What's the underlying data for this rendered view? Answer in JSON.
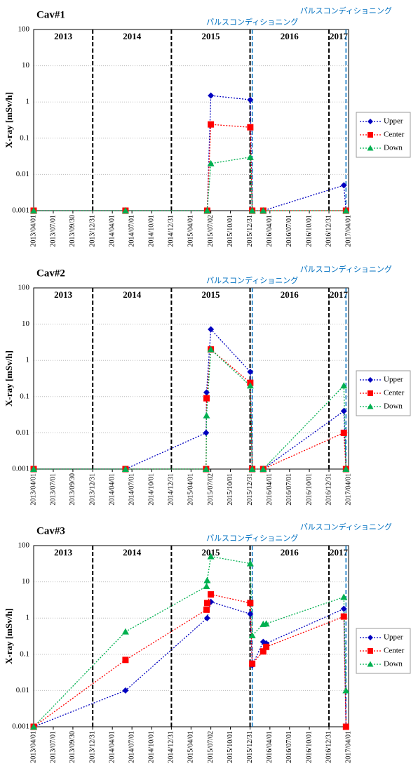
{
  "chart_data": [
    {
      "type": "line",
      "title": "Cav#1",
      "y_label": "X-ray [mSv/h]",
      "log_y": true,
      "grid": true,
      "ylim": [
        0.001,
        100
      ],
      "yticks": [
        0.001,
        0.01,
        0.1,
        1,
        10,
        100
      ],
      "xlim": [
        "2013/04/01",
        "2017/04/01"
      ],
      "xticks": [
        "2013/04/01",
        "2013/07/01",
        "2013/09/30",
        "2013/12/31",
        "2014/04/01",
        "2014/07/01",
        "2014/10/01",
        "2014/12/31",
        "2015/04/01",
        "2015/07/02",
        "2015/10/01",
        "2015/12/31",
        "2016/04/01",
        "2016/07/01",
        "2016/10/01",
        "2016/12/31",
        "2017/04/01"
      ],
      "year_dividers": [
        "2013/12/31",
        "2014/12/31",
        "2015/12/31",
        "2016/12/31"
      ],
      "year_labels": [
        "2013",
        "2014",
        "2015",
        "2016",
        "2017"
      ],
      "annotations": [
        {
          "text": "パルスコンディショニング",
          "x": "2016/01/10"
        },
        {
          "text": "パルスコンディショニング",
          "x": "2017/03/20"
        }
      ],
      "series": [
        {
          "name": "Upper",
          "color": "#0000c0",
          "marker": "diamond",
          "x": [
            "2013/04/01",
            "2014/06/01",
            "2015/06/15",
            "2015/07/02",
            "2016/01/01",
            "2016/01/10",
            "2016/03/01",
            "2017/03/10",
            "2017/03/20"
          ],
          "values": [
            0.001,
            0.001,
            0.001,
            1.5,
            1.15,
            0.001,
            0.001,
            0.005,
            0.001
          ]
        },
        {
          "name": "Center",
          "color": "#ff0000",
          "marker": "square",
          "x": [
            "2013/04/01",
            "2014/06/01",
            "2015/06/15",
            "2015/07/02",
            "2016/01/01",
            "2016/01/10",
            "2016/03/01",
            "2017/03/20"
          ],
          "values": [
            0.001,
            0.001,
            0.001,
            0.24,
            0.2,
            0.001,
            0.001,
            0.001
          ]
        },
        {
          "name": "Down",
          "color": "#00b050",
          "marker": "triangle",
          "x": [
            "2013/04/01",
            "2014/06/01",
            "2015/06/15",
            "2015/07/02",
            "2016/01/01",
            "2016/01/10",
            "2016/03/01",
            "2017/03/20"
          ],
          "values": [
            0.001,
            0.001,
            0.001,
            0.02,
            0.03,
            0.001,
            0.001,
            0.001
          ]
        }
      ]
    },
    {
      "type": "line",
      "title": "Cav#2",
      "y_label": "X-ray [mSv/h]",
      "log_y": true,
      "grid": true,
      "ylim": [
        0.001,
        100
      ],
      "yticks": [
        0.001,
        0.01,
        0.1,
        1,
        10,
        100
      ],
      "xlim": [
        "2013/04/01",
        "2017/04/01"
      ],
      "xticks": [
        "2013/04/01",
        "2013/07/01",
        "2013/09/30",
        "2013/12/31",
        "2014/04/01",
        "2014/07/01",
        "2014/10/01",
        "2014/12/31",
        "2015/04/01",
        "2015/07/02",
        "2015/10/01",
        "2015/12/31",
        "2016/04/01",
        "2016/07/01",
        "2016/10/01",
        "2016/12/31",
        "2017/04/01"
      ],
      "year_dividers": [
        "2013/12/31",
        "2014/12/31",
        "2015/12/31",
        "2016/12/31"
      ],
      "year_labels": [
        "2013",
        "2014",
        "2015",
        "2016",
        "2017"
      ],
      "annotations": [
        {
          "text": "パルスコンディショニング",
          "x": "2016/01/10"
        },
        {
          "text": "パルスコンディショニング",
          "x": "2017/03/20"
        }
      ],
      "series": [
        {
          "name": "Upper",
          "color": "#0000c0",
          "marker": "diamond",
          "x": [
            "2013/04/01",
            "2014/06/01",
            "2015/06/10",
            "2015/06/12",
            "2015/07/02",
            "2016/01/01",
            "2016/01/10",
            "2016/03/01",
            "2017/03/10",
            "2017/03/20"
          ],
          "values": [
            0.001,
            0.001,
            0.01,
            0.13,
            7.2,
            0.48,
            0.001,
            0.001,
            0.04,
            0.001
          ]
        },
        {
          "name": "Center",
          "color": "#ff0000",
          "marker": "square",
          "x": [
            "2013/04/01",
            "2014/06/01",
            "2015/06/10",
            "2015/06/12",
            "2015/07/02",
            "2016/01/01",
            "2016/01/10",
            "2016/03/01",
            "2017/03/10",
            "2017/03/20"
          ],
          "values": [
            0.001,
            0.001,
            0.001,
            0.09,
            2,
            0.24,
            0.001,
            0.001,
            0.01,
            0.001
          ]
        },
        {
          "name": "Down",
          "color": "#00b050",
          "marker": "triangle",
          "x": [
            "2013/04/01",
            "2014/06/01",
            "2015/06/10",
            "2015/06/12",
            "2015/07/02",
            "2016/01/01",
            "2016/01/10",
            "2016/03/01",
            "2017/03/10",
            "2017/03/20"
          ],
          "values": [
            0.001,
            0.001,
            0.001,
            0.03,
            2,
            0.2,
            0.001,
            0.001,
            0.2,
            0.001
          ]
        }
      ]
    },
    {
      "type": "line",
      "title": "Cav#3",
      "y_label": "X-ray [mSv/h]",
      "log_y": true,
      "grid": true,
      "ylim": [
        0.001,
        100
      ],
      "yticks": [
        0.001,
        0.01,
        0.1,
        1,
        10,
        100
      ],
      "xlim": [
        "2013/04/01",
        "2017/04/01"
      ],
      "xticks": [
        "2013/04/01",
        "2013/07/01",
        "2013/09/30",
        "2013/12/31",
        "2014/04/01",
        "2014/07/01",
        "2014/10/01",
        "2014/12/31",
        "2015/04/01",
        "2015/07/02",
        "2015/10/01",
        "2015/12/31",
        "2016/04/01",
        "2016/07/01",
        "2016/10/01",
        "2016/12/31",
        "2017/04/01"
      ],
      "year_dividers": [
        "2013/12/31",
        "2014/12/31",
        "2015/12/31",
        "2016/12/31"
      ],
      "year_labels": [
        "2013",
        "2014",
        "2015",
        "2016",
        "2017"
      ],
      "annotations": [
        {
          "text": "パルスコンディショニング",
          "x": "2016/01/10"
        },
        {
          "text": "パルスコンディショニング",
          "x": "2017/03/20"
        }
      ],
      "series": [
        {
          "name": "Upper",
          "color": "#0000c0",
          "marker": "diamond",
          "x": [
            "2013/04/01",
            "2014/06/01",
            "2015/06/15",
            "2015/07/02",
            "2016/01/01",
            "2016/01/10",
            "2016/03/01",
            "2016/03/15",
            "2017/03/10",
            "2017/03/20"
          ],
          "values": [
            0.001,
            0.01,
            1,
            2.8,
            1.3,
            0.05,
            0.22,
            0.2,
            1.8,
            0.001
          ]
        },
        {
          "name": "Center",
          "color": "#ff0000",
          "marker": "square",
          "x": [
            "2013/04/01",
            "2014/06/01",
            "2015/06/12",
            "2015/06/15",
            "2015/07/02",
            "2016/01/01",
            "2016/01/10",
            "2016/03/01",
            "2016/03/15",
            "2017/03/10",
            "2017/03/20"
          ],
          "values": [
            0.001,
            0.07,
            1.7,
            2.6,
            4.5,
            2.6,
            0.055,
            0.12,
            0.16,
            1.1,
            0.001
          ]
        },
        {
          "name": "Down",
          "color": "#00b050",
          "marker": "triangle",
          "x": [
            "2013/04/01",
            "2014/06/01",
            "2015/06/12",
            "2015/06/15",
            "2015/07/02",
            "2016/01/01",
            "2016/01/10",
            "2016/03/01",
            "2016/03/15",
            "2017/03/10",
            "2017/03/20"
          ],
          "values": [
            0.001,
            0.42,
            7.5,
            11,
            50,
            32,
            0.33,
            0.68,
            0.7,
            3.8,
            0.01
          ]
        }
      ]
    }
  ]
}
